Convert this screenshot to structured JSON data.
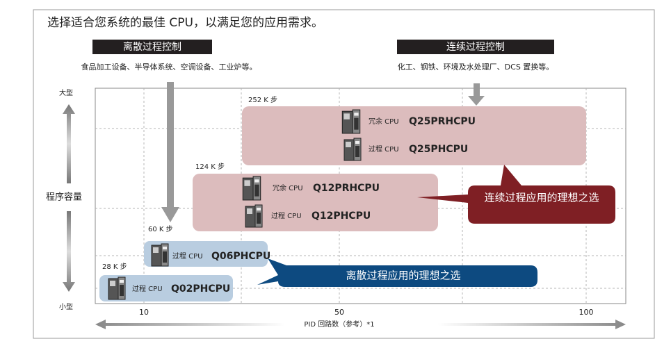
{
  "title": "选择适合您系统的最佳 CPU，以满足您的应用需求。",
  "categories": [
    {
      "label": "离散过程控制",
      "examples": "食品加工设备、半导体系统、空调设备、工业炉等。"
    },
    {
      "label": "连续过程控制",
      "examples": "化工、钢铁、环境及水处理厂、DCS 置换等。"
    }
  ],
  "y_axis": {
    "label": "程序容量",
    "top": "大型",
    "bottom": "小型"
  },
  "x_axis": {
    "label": "PID 回路数（参考）*1",
    "ticks": [
      "10",
      "50",
      "100"
    ]
  },
  "groups": [
    {
      "capacity": "252 K 步",
      "products": [
        {
          "prefix": "冗余 CPU",
          "model": "Q25PRHCPU"
        },
        {
          "prefix": "过程 CPU",
          "model": "Q25PHCPU"
        }
      ]
    },
    {
      "capacity": "124 K 步",
      "products": [
        {
          "prefix": "冗余 CPU",
          "model": "Q12PRHCPU"
        },
        {
          "prefix": "过程 CPU",
          "model": "Q12PHCPU"
        }
      ]
    },
    {
      "capacity": "60 K 步",
      "products": [
        {
          "prefix": "过程 CPU",
          "model": "Q06PHCPU"
        }
      ]
    },
    {
      "capacity": "28 K 步",
      "products": [
        {
          "prefix": "过程 CPU",
          "model": "Q02PHCPU"
        }
      ]
    }
  ],
  "callouts": [
    "连续过程应用的理想之选",
    "离散过程应用的理想之选"
  ]
}
